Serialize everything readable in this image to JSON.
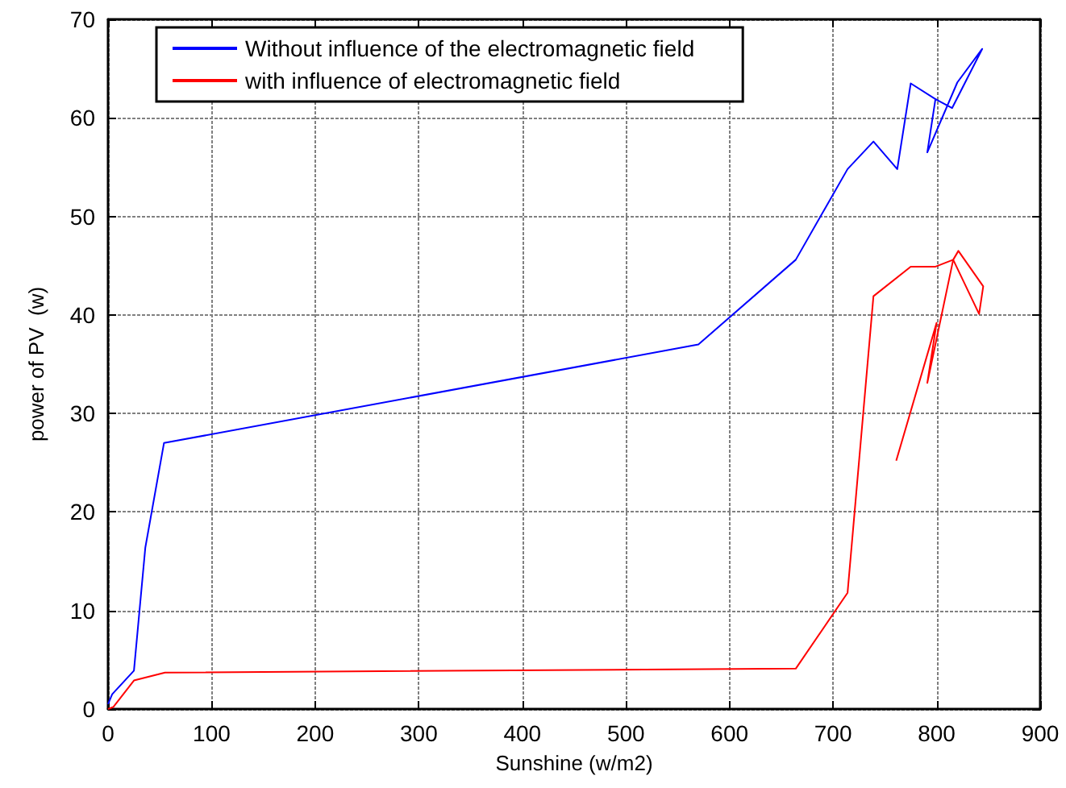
{
  "chart_data": {
    "type": "line",
    "xlabel": "Sunshine (w/m2)",
    "ylabel": "power of PV  (w)",
    "xlim": [
      0,
      900
    ],
    "xticks": [
      0,
      100,
      200,
      300,
      400,
      500,
      600,
      700,
      800,
      900
    ],
    "ylim": [
      0,
      70
    ],
    "yticks": [
      0,
      10,
      20,
      30,
      40,
      50,
      60,
      70
    ],
    "grid": true,
    "legend": "top left",
    "marker": "none",
    "line_style": "solid",
    "series": [
      {
        "name": "Without influence of the electromagnetic field",
        "color": "#0000ff",
        "x": [
          0,
          4,
          25,
          36,
          54,
          570,
          664,
          714,
          739,
          762,
          775,
          799,
          815,
          844,
          820,
          791,
          799
        ],
        "values": [
          0.5,
          1.5,
          3.9,
          16.4,
          27,
          37,
          45.6,
          54.8,
          57.6,
          54.8,
          63.5,
          61.9,
          61,
          67,
          63.6,
          56.5,
          62
        ]
      },
      {
        "name": "with influence of electromagnetic field",
        "color": "#ff0000",
        "x": [
          0,
          5,
          25,
          55,
          664,
          714,
          739,
          775,
          799,
          816,
          821,
          845,
          841,
          816,
          791,
          800,
          761
        ],
        "values": [
          0,
          0.2,
          2.9,
          3.7,
          4.1,
          11.8,
          41.9,
          44.9,
          44.9,
          45.6,
          46.5,
          42.9,
          40.1,
          45.6,
          33.1,
          39.2,
          25.2
        ]
      }
    ]
  }
}
